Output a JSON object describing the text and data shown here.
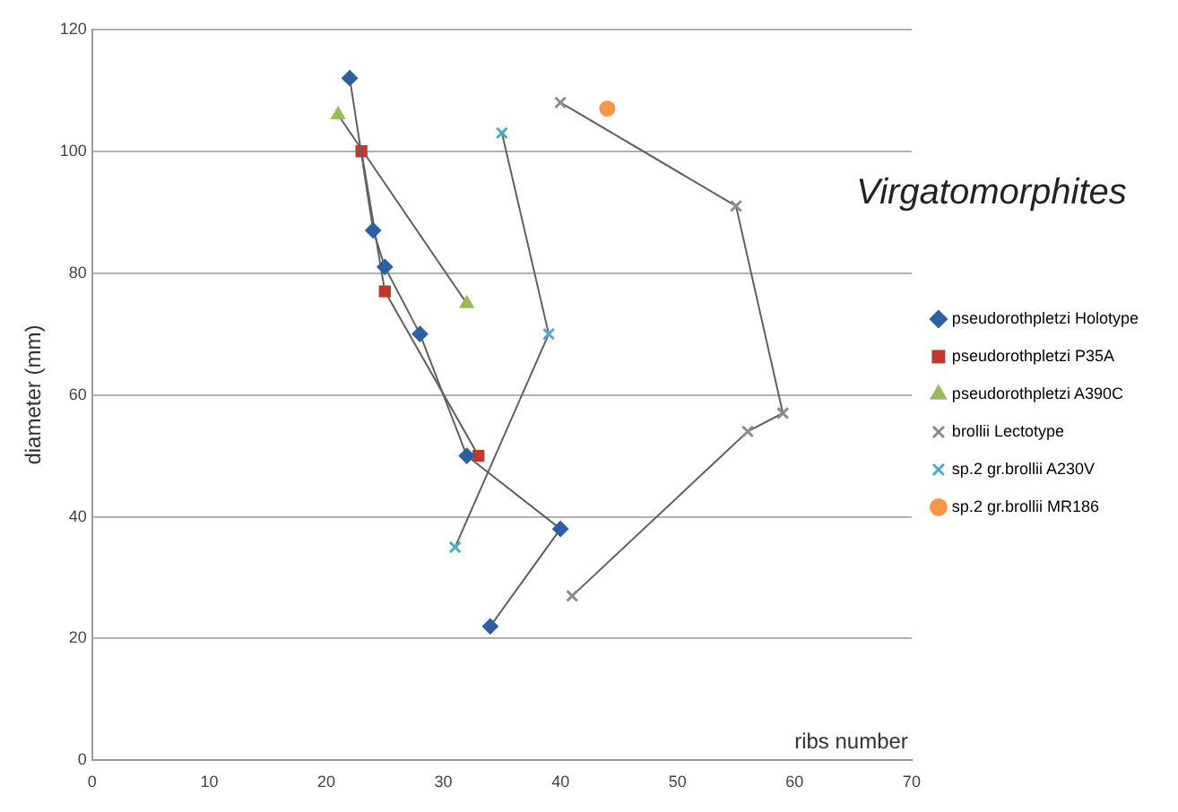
{
  "chart_data": {
    "type": "scatter",
    "title": "Virgatomorphites",
    "xlabel": "ribs number",
    "ylabel": "diameter (mm)",
    "xlim": [
      0,
      70
    ],
    "xticks": [
      0,
      10,
      20,
      30,
      40,
      50,
      60,
      70
    ],
    "ylim": [
      0,
      120
    ],
    "yticks": [
      0,
      20,
      40,
      60,
      80,
      100,
      120
    ],
    "grid": "y",
    "legend": "right",
    "series": [
      {
        "name": "pseudorothpletzi Holotype",
        "type": "line",
        "marker": "diamond",
        "color": "#2e5fa3",
        "x": [
          22,
          24,
          25,
          28,
          32,
          40,
          34
        ],
        "values": [
          112,
          87,
          81,
          70,
          50,
          38,
          22
        ]
      },
      {
        "name": "pseudorothpletzi P35A",
        "type": "line",
        "marker": "square",
        "color": "#c0392b",
        "x": [
          23,
          25,
          33
        ],
        "values": [
          100,
          77,
          50
        ]
      },
      {
        "name": "pseudorothpletzi A390C",
        "type": "line",
        "marker": "triangle",
        "color": "#9bbb59",
        "x": [
          21,
          32
        ],
        "values": [
          106,
          75
        ]
      },
      {
        "name": "brollii Lectotype",
        "type": "line",
        "marker": "cross",
        "color": "#8c8c8c",
        "x": [
          40,
          55,
          59,
          56,
          41
        ],
        "values": [
          108,
          91,
          57,
          54,
          27
        ]
      },
      {
        "name": "sp.2 gr.brollii A230V",
        "type": "line",
        "marker": "cross",
        "color": "#4bacc6",
        "x": [
          35,
          39,
          31
        ],
        "values": [
          103,
          70,
          35
        ]
      },
      {
        "name": "sp.2 gr.brollii MR186",
        "type": "scatter",
        "marker": "circle",
        "color": "#f79646",
        "x": [
          44
        ],
        "values": [
          107
        ]
      }
    ]
  }
}
